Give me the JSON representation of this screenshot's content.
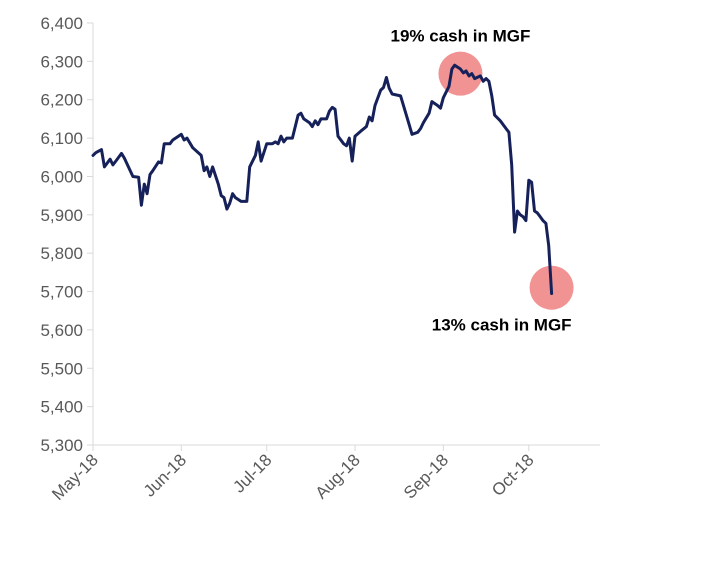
{
  "chart_data": {
    "type": "line",
    "title": "",
    "xlabel": "",
    "ylabel": "",
    "ylim": [
      5300,
      6400
    ],
    "y_ticks": [
      5300,
      5400,
      5500,
      5600,
      5700,
      5800,
      5900,
      6000,
      6100,
      6200,
      6300,
      6400
    ],
    "y_tick_labels": [
      "5,300",
      "5,400",
      "5,500",
      "5,600",
      "5,700",
      "5,800",
      "5,900",
      "6,000",
      "6,100",
      "6,200",
      "6,300",
      "6,400"
    ],
    "x_range": [
      "2018-05-01",
      "2018-10-26"
    ],
    "x_ticks": [
      {
        "date": "2018-05-01",
        "label": "May-18"
      },
      {
        "date": "2018-06-01",
        "label": "Jun-18"
      },
      {
        "date": "2018-07-01",
        "label": "Jul-18"
      },
      {
        "date": "2018-08-01",
        "label": "Aug-18"
      },
      {
        "date": "2018-09-01",
        "label": "Sep-18"
      },
      {
        "date": "2018-10-01",
        "label": "Oct-18"
      }
    ],
    "grid": {
      "horizontal": false,
      "vertical": false
    },
    "line_color": "#16215a",
    "highlight_color": "#f08080",
    "series": [
      {
        "points": [
          [
            "2018-05-01",
            6055
          ],
          [
            "2018-05-02",
            6062
          ],
          [
            "2018-05-04",
            6070
          ],
          [
            "2018-05-05",
            6025
          ],
          [
            "2018-05-07",
            6045
          ],
          [
            "2018-05-08",
            6030
          ],
          [
            "2018-05-09",
            6040
          ],
          [
            "2018-05-11",
            6060
          ],
          [
            "2018-05-12",
            6048
          ],
          [
            "2018-05-15",
            6000
          ],
          [
            "2018-05-17",
            5998
          ],
          [
            "2018-05-18",
            5925
          ],
          [
            "2018-05-19",
            5980
          ],
          [
            "2018-05-20",
            5955
          ],
          [
            "2018-05-21",
            6005
          ],
          [
            "2018-05-22",
            6015
          ],
          [
            "2018-05-24",
            6038
          ],
          [
            "2018-05-25",
            6035
          ],
          [
            "2018-05-26",
            6085
          ],
          [
            "2018-05-28",
            6085
          ],
          [
            "2018-05-29",
            6095
          ],
          [
            "2018-05-31",
            6105
          ],
          [
            "2018-06-01",
            6110
          ],
          [
            "2018-06-02",
            6095
          ],
          [
            "2018-06-03",
            6100
          ],
          [
            "2018-06-05",
            6075
          ],
          [
            "2018-06-08",
            6055
          ],
          [
            "2018-06-09",
            6015
          ],
          [
            "2018-06-10",
            6025
          ],
          [
            "2018-06-11",
            6000
          ],
          [
            "2018-06-12",
            6025
          ],
          [
            "2018-06-14",
            5980
          ],
          [
            "2018-06-15",
            5950
          ],
          [
            "2018-06-16",
            5945
          ],
          [
            "2018-06-17",
            5915
          ],
          [
            "2018-06-18",
            5930
          ],
          [
            "2018-06-19",
            5955
          ],
          [
            "2018-06-20",
            5945
          ],
          [
            "2018-06-22",
            5935
          ],
          [
            "2018-06-24",
            5935
          ],
          [
            "2018-06-25",
            6025
          ],
          [
            "2018-06-27",
            6055
          ],
          [
            "2018-06-28",
            6090
          ],
          [
            "2018-06-29",
            6040
          ],
          [
            "2018-07-01",
            6085
          ],
          [
            "2018-07-03",
            6085
          ],
          [
            "2018-07-04",
            6090
          ],
          [
            "2018-07-05",
            6085
          ],
          [
            "2018-07-06",
            6105
          ],
          [
            "2018-07-07",
            6090
          ],
          [
            "2018-07-08",
            6100
          ],
          [
            "2018-07-10",
            6100
          ],
          [
            "2018-07-12",
            6160
          ],
          [
            "2018-07-13",
            6165
          ],
          [
            "2018-07-14",
            6150
          ],
          [
            "2018-07-16",
            6140
          ],
          [
            "2018-07-17",
            6130
          ],
          [
            "2018-07-18",
            6145
          ],
          [
            "2018-07-19",
            6135
          ],
          [
            "2018-07-20",
            6150
          ],
          [
            "2018-07-22",
            6150
          ],
          [
            "2018-07-23",
            6170
          ],
          [
            "2018-07-24",
            6180
          ],
          [
            "2018-07-25",
            6175
          ],
          [
            "2018-07-26",
            6105
          ],
          [
            "2018-07-28",
            6085
          ],
          [
            "2018-07-29",
            6080
          ],
          [
            "2018-07-30",
            6100
          ],
          [
            "2018-07-31",
            6040
          ],
          [
            "2018-08-01",
            6105
          ],
          [
            "2018-08-03",
            6118
          ],
          [
            "2018-08-05",
            6130
          ],
          [
            "2018-08-06",
            6155
          ],
          [
            "2018-08-07",
            6145
          ],
          [
            "2018-08-08",
            6185
          ],
          [
            "2018-08-10",
            6225
          ],
          [
            "2018-08-11",
            6232
          ],
          [
            "2018-08-12",
            6258
          ],
          [
            "2018-08-13",
            6230
          ],
          [
            "2018-08-14",
            6215
          ],
          [
            "2018-08-17",
            6210
          ],
          [
            "2018-08-20",
            6135
          ],
          [
            "2018-08-21",
            6110
          ],
          [
            "2018-08-23",
            6115
          ],
          [
            "2018-08-24",
            6125
          ],
          [
            "2018-08-25",
            6140
          ],
          [
            "2018-08-27",
            6165
          ],
          [
            "2018-08-28",
            6195
          ],
          [
            "2018-08-30",
            6185
          ],
          [
            "2018-08-31",
            6178
          ],
          [
            "2018-09-01",
            6205
          ],
          [
            "2018-09-03",
            6235
          ],
          [
            "2018-09-04",
            6280
          ],
          [
            "2018-09-05",
            6290
          ],
          [
            "2018-09-07",
            6280
          ],
          [
            "2018-09-08",
            6270
          ],
          [
            "2018-09-09",
            6275
          ],
          [
            "2018-09-10",
            6262
          ],
          [
            "2018-09-11",
            6268
          ],
          [
            "2018-09-12",
            6255
          ],
          [
            "2018-09-14",
            6262
          ],
          [
            "2018-09-15",
            6248
          ],
          [
            "2018-09-16",
            6255
          ],
          [
            "2018-09-17",
            6248
          ],
          [
            "2018-09-18",
            6210
          ],
          [
            "2018-09-19",
            6160
          ],
          [
            "2018-09-21",
            6145
          ],
          [
            "2018-09-23",
            6125
          ],
          [
            "2018-09-24",
            6115
          ],
          [
            "2018-09-25",
            6030
          ],
          [
            "2018-09-26",
            5855
          ],
          [
            "2018-09-27",
            5910
          ],
          [
            "2018-09-28",
            5900
          ],
          [
            "2018-09-29",
            5895
          ],
          [
            "2018-09-30",
            5885
          ],
          [
            "2018-10-01",
            5990
          ],
          [
            "2018-10-02",
            5985
          ],
          [
            "2018-10-03",
            5910
          ],
          [
            "2018-10-04",
            5905
          ],
          [
            "2018-10-05",
            5895
          ],
          [
            "2018-10-06",
            5885
          ],
          [
            "2018-10-07",
            5878
          ],
          [
            "2018-10-08",
            5820
          ],
          [
            "2018-10-09",
            5695
          ]
        ]
      }
    ],
    "annotations": [
      {
        "text": "19% cash in MGF",
        "date": "2018-09-07",
        "value": 6268
      },
      {
        "text": "13% cash in MGF",
        "date": "2018-10-09",
        "value": 5710
      }
    ]
  }
}
